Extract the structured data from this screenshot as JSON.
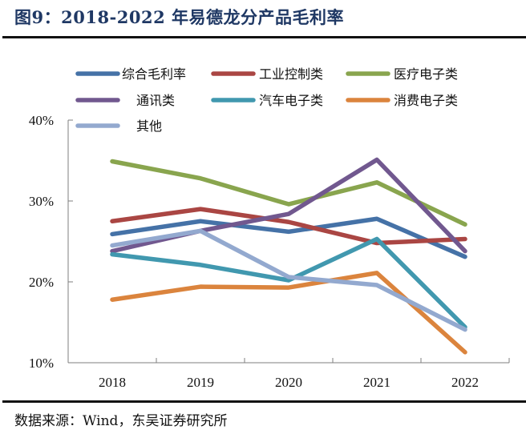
{
  "title": "图9：2018-2022 年易德龙分产品毛利率",
  "source": "数据来源：Wind，东吴证券研究所",
  "chart_data": {
    "type": "line",
    "title": "图9：2018-2022 年易德龙分产品毛利率",
    "xlabel": "",
    "ylabel": "",
    "categories": [
      "2018",
      "2019",
      "2020",
      "2021",
      "2022"
    ],
    "ylim": [
      10,
      40
    ],
    "yticks": [
      10,
      20,
      30,
      40
    ],
    "ytick_labels": [
      "10%",
      "20%",
      "30%",
      "40%"
    ],
    "grid": false,
    "legend_position": "top",
    "series": [
      {
        "name": "综合毛利率",
        "color": "#4572A7",
        "values": [
          25.9,
          27.5,
          26.2,
          27.8,
          23.1
        ]
      },
      {
        "name": "工业控制类",
        "color": "#AA4643",
        "values": [
          27.5,
          29.0,
          27.4,
          24.8,
          25.3
        ]
      },
      {
        "name": "医疗电子类",
        "color": "#89A54E",
        "values": [
          34.9,
          32.8,
          29.6,
          32.3,
          27.1
        ]
      },
      {
        "name": "通讯类",
        "color": "#71588F",
        "values": [
          23.8,
          26.3,
          28.4,
          35.1,
          23.8
        ]
      },
      {
        "name": "汽车电子类",
        "color": "#4198AF",
        "values": [
          23.4,
          22.1,
          20.2,
          25.3,
          14.4
        ]
      },
      {
        "name": "消费电子类",
        "color": "#DB843D",
        "values": [
          17.8,
          19.4,
          19.3,
          21.1,
          11.3
        ]
      },
      {
        "name": "其他",
        "color": "#93A9CF",
        "values": [
          24.5,
          26.3,
          20.6,
          19.6,
          14.1
        ]
      }
    ]
  }
}
